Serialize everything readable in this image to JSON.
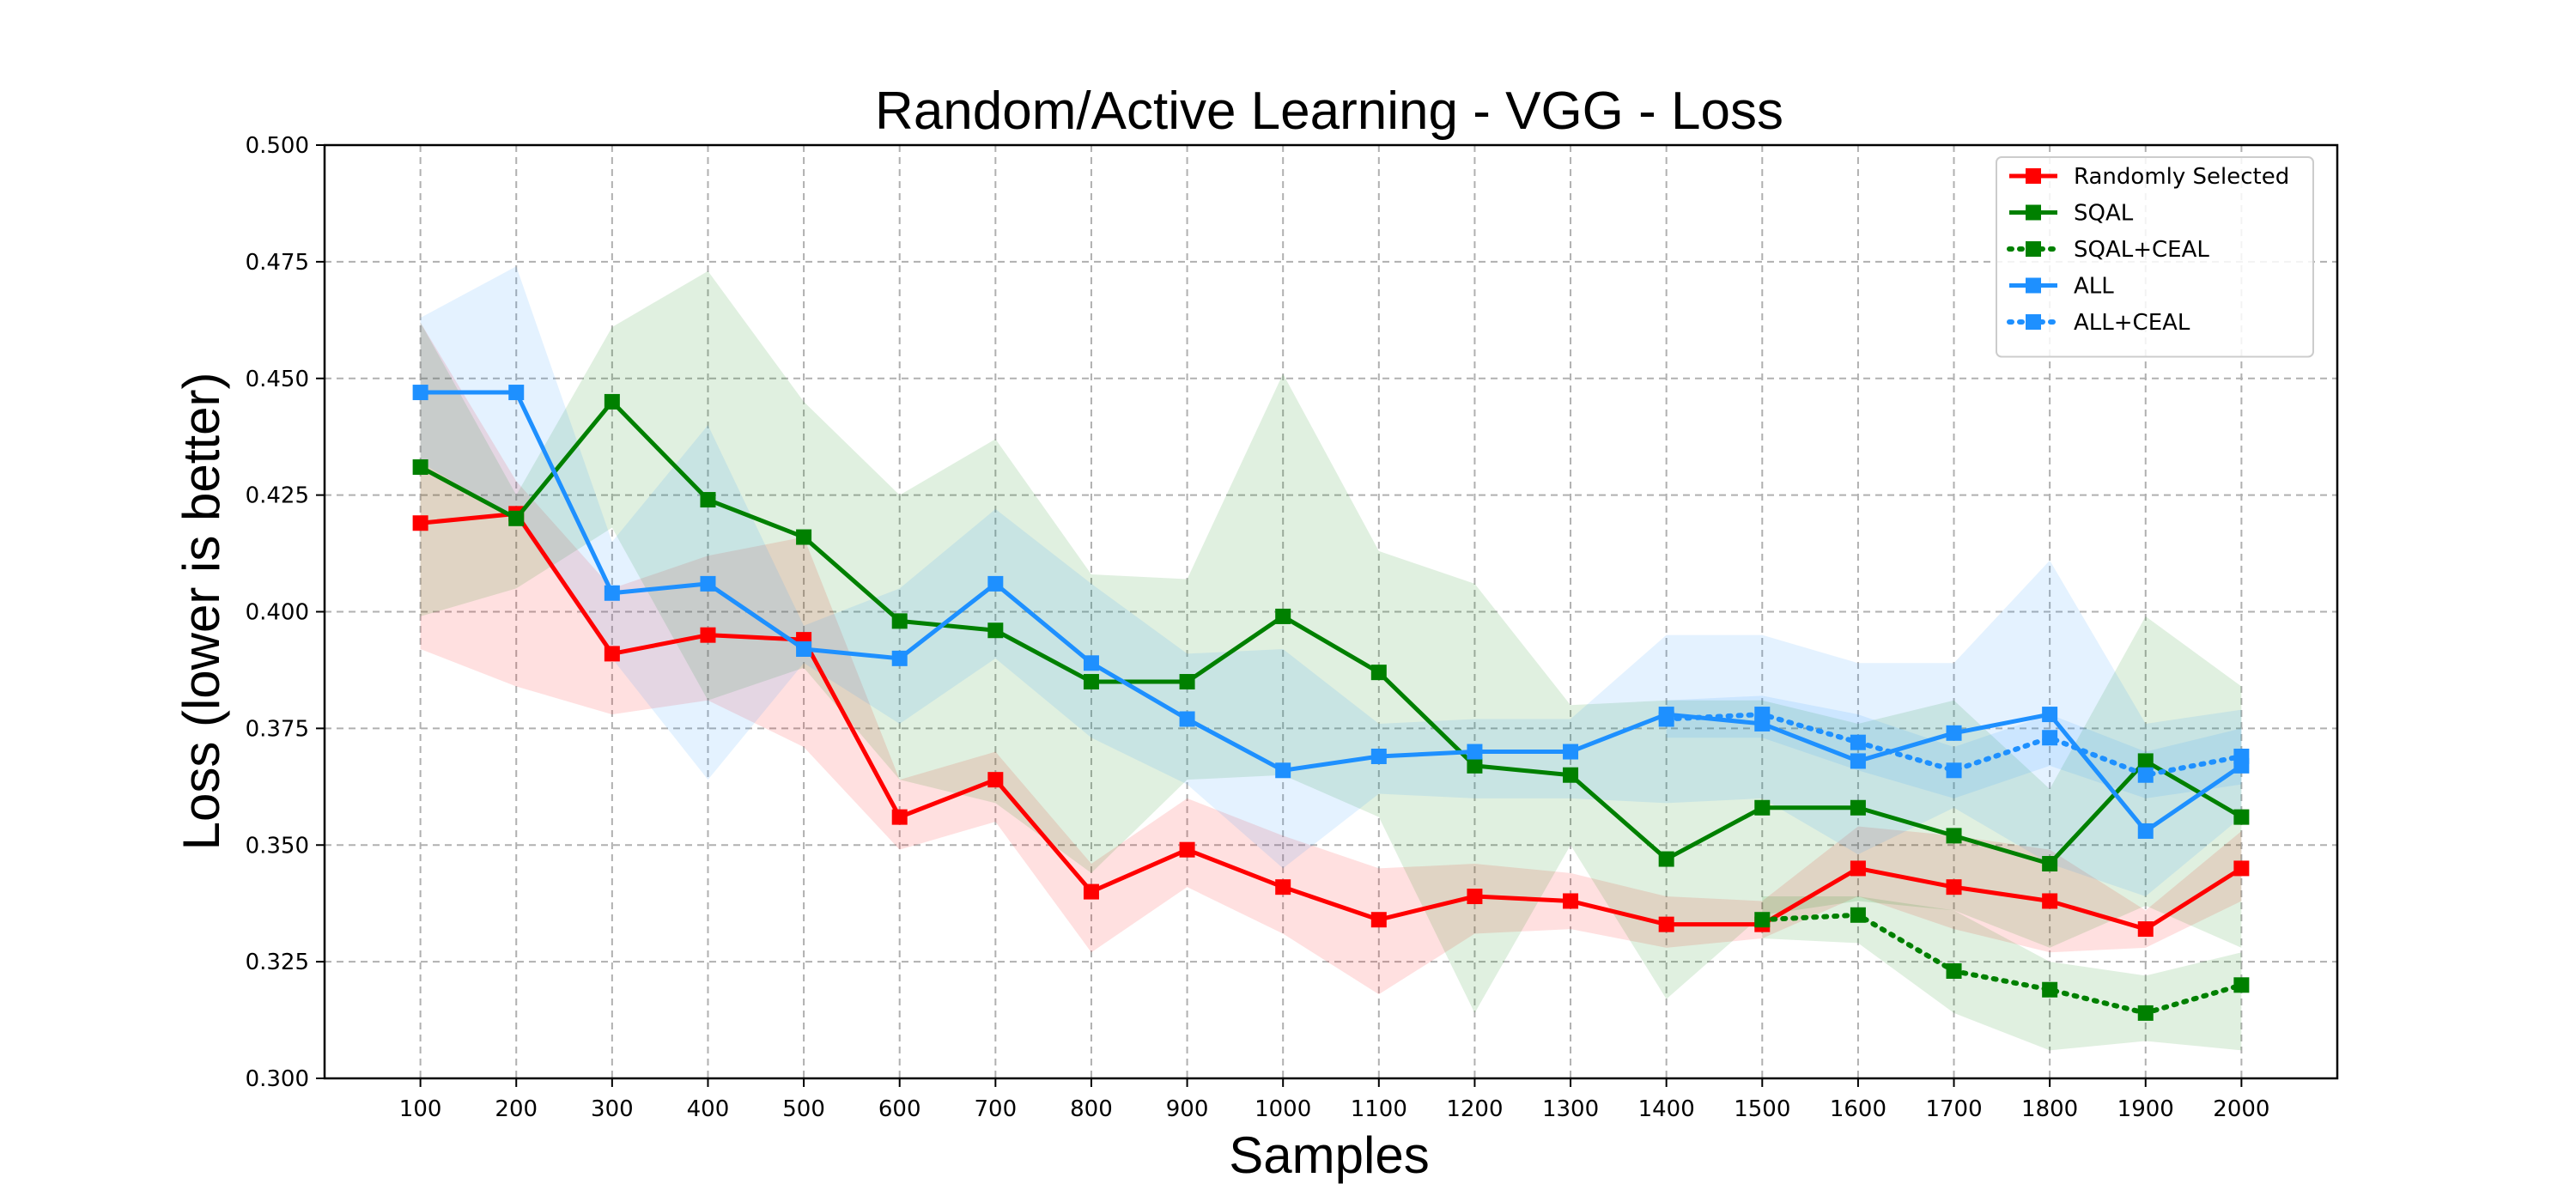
{
  "chart_data": {
    "type": "line",
    "title": "Random/Active Learning - VGG - Loss",
    "xlabel": "Samples",
    "ylabel": "Loss (lower is better)",
    "ylim": [
      0.3,
      0.5
    ],
    "yticks": [
      "0.300",
      "0.325",
      "0.350",
      "0.375",
      "0.400",
      "0.425",
      "0.450",
      "0.475",
      "0.500"
    ],
    "x": [
      100,
      200,
      300,
      400,
      500,
      600,
      700,
      800,
      900,
      1000,
      1100,
      1200,
      1300,
      1400,
      1500,
      1600,
      1700,
      1800,
      1900,
      2000
    ],
    "grid": true,
    "legend_position": "top-right",
    "series": [
      {
        "name": "Randomly Selected",
        "color": "#ff0000",
        "style": "solid",
        "x": [
          100,
          200,
          300,
          400,
          500,
          600,
          700,
          800,
          900,
          1000,
          1100,
          1200,
          1300,
          1400,
          1500,
          1600,
          1700,
          1800,
          1900,
          2000
        ],
        "values": [
          0.419,
          0.421,
          0.391,
          0.395,
          0.394,
          0.356,
          0.364,
          0.34,
          0.349,
          0.341,
          0.334,
          0.339,
          0.338,
          0.333,
          0.333,
          0.345,
          0.341,
          0.338,
          0.332,
          0.345
        ],
        "upper": [
          0.462,
          0.428,
          0.405,
          0.412,
          0.416,
          0.364,
          0.37,
          0.346,
          0.36,
          0.352,
          0.345,
          0.346,
          0.344,
          0.339,
          0.338,
          0.354,
          0.352,
          0.349,
          0.336,
          0.353
        ],
        "lower": [
          0.392,
          0.384,
          0.378,
          0.381,
          0.371,
          0.349,
          0.355,
          0.327,
          0.341,
          0.331,
          0.318,
          0.331,
          0.332,
          0.328,
          0.33,
          0.339,
          0.332,
          0.327,
          0.328,
          0.338
        ]
      },
      {
        "name": "SQAL",
        "color": "#008000",
        "style": "solid",
        "x": [
          100,
          200,
          300,
          400,
          500,
          600,
          700,
          800,
          900,
          1000,
          1100,
          1200,
          1300,
          1400,
          1500,
          1600,
          1700,
          1800,
          1900,
          2000
        ],
        "values": [
          0.431,
          0.42,
          0.445,
          0.424,
          0.416,
          0.398,
          0.396,
          0.385,
          0.385,
          0.399,
          0.387,
          0.367,
          0.365,
          0.347,
          0.358,
          0.358,
          0.352,
          0.346,
          0.368,
          0.356
        ],
        "upper": [
          0.462,
          0.425,
          0.461,
          0.473,
          0.445,
          0.425,
          0.437,
          0.408,
          0.407,
          0.451,
          0.413,
          0.406,
          0.38,
          0.381,
          0.381,
          0.376,
          0.381,
          0.362,
          0.399,
          0.384
        ],
        "lower": [
          0.399,
          0.405,
          0.418,
          0.381,
          0.388,
          0.364,
          0.359,
          0.344,
          0.364,
          0.365,
          0.356,
          0.314,
          0.35,
          0.317,
          0.335,
          0.338,
          0.336,
          0.328,
          0.337,
          0.328
        ]
      },
      {
        "name": "SQAL+CEAL",
        "color": "#008000",
        "style": "dotted",
        "x": [
          1500,
          1600,
          1700,
          1800,
          1900,
          2000
        ],
        "values": [
          0.334,
          0.335,
          0.323,
          0.319,
          0.314,
          0.32
        ],
        "upper": [
          0.339,
          0.339,
          0.336,
          0.325,
          0.322,
          0.327
        ],
        "lower": [
          0.33,
          0.329,
          0.314,
          0.306,
          0.308,
          0.306
        ]
      },
      {
        "name": "ALL",
        "color": "#1e90ff",
        "style": "solid",
        "x": [
          100,
          200,
          300,
          400,
          500,
          600,
          700,
          800,
          900,
          1000,
          1100,
          1200,
          1300,
          1400,
          1500,
          1600,
          1700,
          1800,
          1900,
          2000
        ],
        "values": [
          0.447,
          0.447,
          0.404,
          0.406,
          0.392,
          0.39,
          0.406,
          0.389,
          0.377,
          0.366,
          0.369,
          0.37,
          0.37,
          0.378,
          0.376,
          0.368,
          0.374,
          0.378,
          0.353,
          0.367
        ],
        "upper": [
          0.463,
          0.474,
          0.415,
          0.44,
          0.397,
          0.405,
          0.422,
          0.406,
          0.391,
          0.392,
          0.376,
          0.377,
          0.377,
          0.395,
          0.395,
          0.389,
          0.389,
          0.411,
          0.376,
          0.379
        ],
        "lower": [
          0.432,
          0.42,
          0.39,
          0.364,
          0.389,
          0.376,
          0.39,
          0.373,
          0.363,
          0.345,
          0.361,
          0.36,
          0.36,
          0.359,
          0.36,
          0.348,
          0.358,
          0.346,
          0.339,
          0.356
        ]
      },
      {
        "name": "ALL+CEAL",
        "color": "#1e90ff",
        "style": "dotted",
        "x": [
          1400,
          1500,
          1600,
          1700,
          1800,
          1900,
          2000
        ],
        "values": [
          0.377,
          0.378,
          0.372,
          0.366,
          0.373,
          0.365,
          0.369
        ],
        "upper": [
          0.381,
          0.382,
          0.378,
          0.371,
          0.378,
          0.37,
          0.375
        ],
        "lower": [
          0.373,
          0.373,
          0.366,
          0.36,
          0.367,
          0.36,
          0.363
        ]
      }
    ]
  }
}
